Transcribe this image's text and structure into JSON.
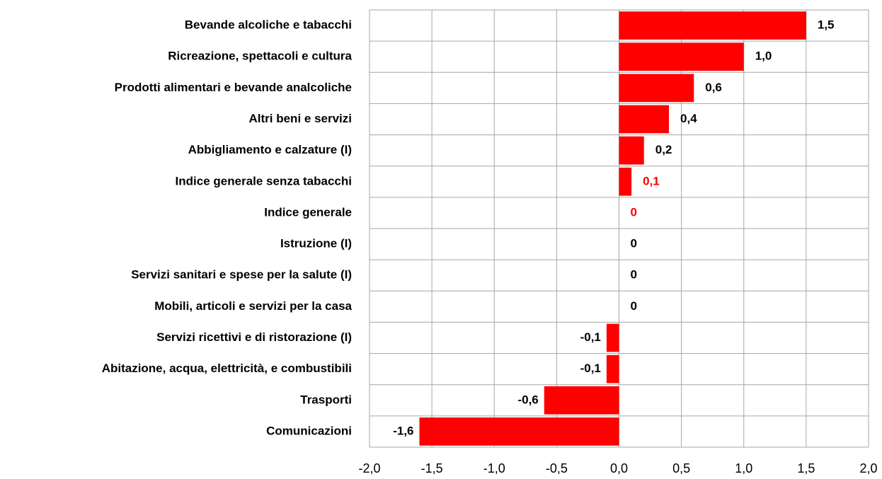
{
  "chart_data": {
    "type": "hbar",
    "categories": [
      "Bevande alcoliche e tabacchi",
      "Ricreazione, spettacoli e cultura",
      "Prodotti alimentari e bevande analcoliche",
      "Altri beni e servizi",
      "Abbigliamento e calzature (I)",
      "Indice generale senza tabacchi",
      "Indice generale",
      "Istruzione (I)",
      "Servizi sanitari e spese per la salute (I)",
      "Mobili, articoli e servizi per la casa",
      "Servizi ricettivi e di ristorazione (I)",
      "Abitazione, acqua, elettricità, e combustibili",
      "Trasporti",
      "Comunicazioni"
    ],
    "values": [
      1.5,
      1.0,
      0.6,
      0.4,
      0.2,
      0.1,
      0,
      0,
      0,
      0,
      -0.1,
      -0.1,
      -0.6,
      -1.6
    ],
    "value_labels": [
      "1,5",
      "1,0",
      "0,6",
      "0,4",
      "0,2",
      "0,1",
      "0",
      "0",
      "0",
      "0",
      "-0,1",
      "-0,1",
      "-0,6",
      "-1,6"
    ],
    "value_label_colors": [
      "#000000",
      "#000000",
      "#000000",
      "#000000",
      "#000000",
      "#ff0000",
      "#ff0000",
      "#000000",
      "#000000",
      "#000000",
      "#000000",
      "#000000",
      "#000000",
      "#000000"
    ],
    "color": "#ff0000",
    "xlim": [
      -2.0,
      2.0
    ],
    "xticks": [
      {
        "value": -2.0,
        "label": "-2,0"
      },
      {
        "value": -1.5,
        "label": "-1,5"
      },
      {
        "value": -1.0,
        "label": "-1,0"
      },
      {
        "value": -0.5,
        "label": "-0,5"
      },
      {
        "value": 0.0,
        "label": "0,0"
      },
      {
        "value": 0.5,
        "label": "0,5"
      },
      {
        "value": 1.0,
        "label": "1,0"
      },
      {
        "value": 1.5,
        "label": "1,5"
      },
      {
        "value": 2.0,
        "label": "2,0"
      }
    ],
    "grid": true
  }
}
